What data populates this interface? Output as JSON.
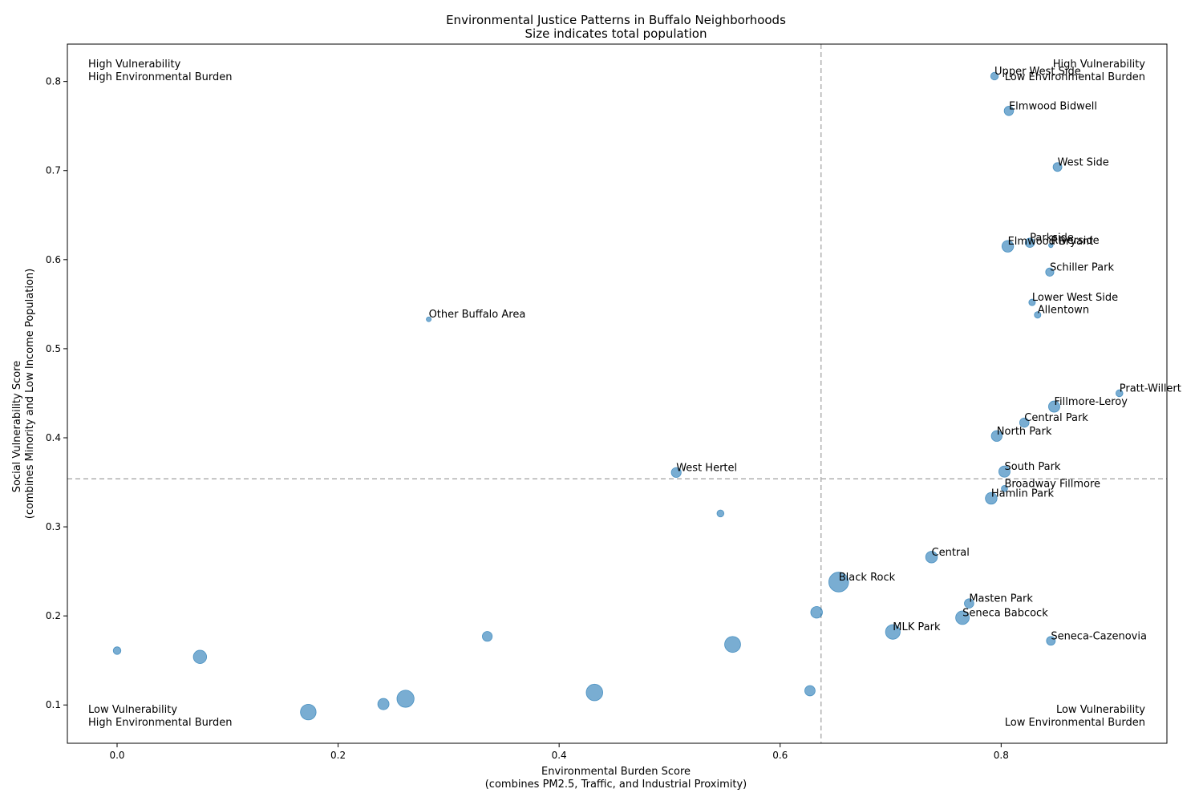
{
  "chart_data": {
    "type": "scatter",
    "title": [
      "Environmental Justice Patterns in Buffalo Neighborhoods",
      "Size indicates total population"
    ],
    "xlabel": [
      "Environmental Burden Score",
      "(combines PM2.5, Traffic, and Industrial Proximity)"
    ],
    "ylabel": [
      "Social Vulnerability Score",
      "(combines Minority and Low Income Population)"
    ],
    "xlim": [
      -0.045,
      0.95
    ],
    "ylim": [
      0.057,
      0.842
    ],
    "xticks": [
      0.0,
      0.2,
      0.4,
      0.6,
      0.8
    ],
    "xtick_labels": [
      "0.0",
      "0.2",
      "0.4",
      "0.6",
      "0.8"
    ],
    "yticks": [
      0.1,
      0.2,
      0.3,
      0.4,
      0.5,
      0.6,
      0.7,
      0.8
    ],
    "ytick_labels": [
      "0.1",
      "0.2",
      "0.3",
      "0.4",
      "0.5",
      "0.6",
      "0.7",
      "0.8"
    ],
    "grid": false,
    "median_lines": {
      "x": 0.637,
      "y": 0.354
    },
    "marker_color": "#1f77b4",
    "reference_line_color": "#b0b0b0",
    "quadrant_labels": [
      {
        "position": "top-left",
        "lines": [
          "High Vulnerability",
          "High Environmental Burden"
        ]
      },
      {
        "position": "top-right",
        "lines": [
          "High Vulnerability",
          "Low Environmental Burden"
        ]
      },
      {
        "position": "bottom-left",
        "lines": [
          "Low Vulnerability",
          "High Environmental Burden"
        ]
      },
      {
        "position": "bottom-right",
        "lines": [
          "Low Vulnerability",
          "Low Environmental Burden"
        ]
      }
    ],
    "points": [
      {
        "name": "Upper West Side",
        "x": 0.794,
        "y": 0.806,
        "size": 30
      },
      {
        "name": "Elmwood Bidwell",
        "x": 0.807,
        "y": 0.767,
        "size": 45
      },
      {
        "name": "West Side",
        "x": 0.851,
        "y": 0.704,
        "size": 40
      },
      {
        "name": "Parkside",
        "x": 0.826,
        "y": 0.619,
        "size": 45
      },
      {
        "name": "Elmwood Bryant",
        "x": 0.806,
        "y": 0.615,
        "size": 70
      },
      {
        "name": "Riverside",
        "x": 0.845,
        "y": 0.616,
        "size": 10
      },
      {
        "name": "Schiller Park",
        "x": 0.844,
        "y": 0.586,
        "size": 35
      },
      {
        "name": "Lower West Side",
        "x": 0.828,
        "y": 0.552,
        "size": 22
      },
      {
        "name": "Allentown",
        "x": 0.833,
        "y": 0.538,
        "size": 22
      },
      {
        "name": "Other Buffalo Area",
        "x": 0.282,
        "y": 0.533,
        "size": 12
      },
      {
        "name": "Pratt-Willert",
        "x": 0.907,
        "y": 0.45,
        "size": 25
      },
      {
        "name": "Fillmore-Leroy",
        "x": 0.848,
        "y": 0.435,
        "size": 65
      },
      {
        "name": "Central Park",
        "x": 0.821,
        "y": 0.417,
        "size": 45
      },
      {
        "name": "North Park",
        "x": 0.796,
        "y": 0.402,
        "size": 60
      },
      {
        "name": "West Hertel",
        "x": 0.506,
        "y": 0.361,
        "size": 50
      },
      {
        "name": "South Park",
        "x": 0.803,
        "y": 0.362,
        "size": 65
      },
      {
        "name": "Broadway Fillmore",
        "x": 0.803,
        "y": 0.343,
        "size": 20
      },
      {
        "name": "Hamlin Park",
        "x": 0.791,
        "y": 0.332,
        "size": 70
      },
      {
        "name": "",
        "x": 0.546,
        "y": 0.315,
        "size": 25
      },
      {
        "name": "Central",
        "x": 0.737,
        "y": 0.266,
        "size": 70
      },
      {
        "name": "Black Rock",
        "x": 0.653,
        "y": 0.238,
        "size": 200
      },
      {
        "name": "Masten Park",
        "x": 0.771,
        "y": 0.214,
        "size": 45
      },
      {
        "name": "",
        "x": 0.633,
        "y": 0.204,
        "size": 70
      },
      {
        "name": "Seneca Babcock",
        "x": 0.765,
        "y": 0.198,
        "size": 95
      },
      {
        "name": "MLK Park",
        "x": 0.702,
        "y": 0.182,
        "size": 110
      },
      {
        "name": "Seneca-Cazenovia",
        "x": 0.845,
        "y": 0.172,
        "size": 40
      },
      {
        "name": "",
        "x": 0.335,
        "y": 0.177,
        "size": 50
      },
      {
        "name": "",
        "x": 0.557,
        "y": 0.168,
        "size": 130
      },
      {
        "name": "",
        "x": 0.0,
        "y": 0.161,
        "size": 30
      },
      {
        "name": "",
        "x": 0.075,
        "y": 0.154,
        "size": 90
      },
      {
        "name": "",
        "x": 0.627,
        "y": 0.116,
        "size": 55
      },
      {
        "name": "",
        "x": 0.432,
        "y": 0.114,
        "size": 140
      },
      {
        "name": "",
        "x": 0.261,
        "y": 0.107,
        "size": 150
      },
      {
        "name": "",
        "x": 0.241,
        "y": 0.101,
        "size": 65
      },
      {
        "name": "",
        "x": 0.173,
        "y": 0.092,
        "size": 125
      }
    ]
  }
}
